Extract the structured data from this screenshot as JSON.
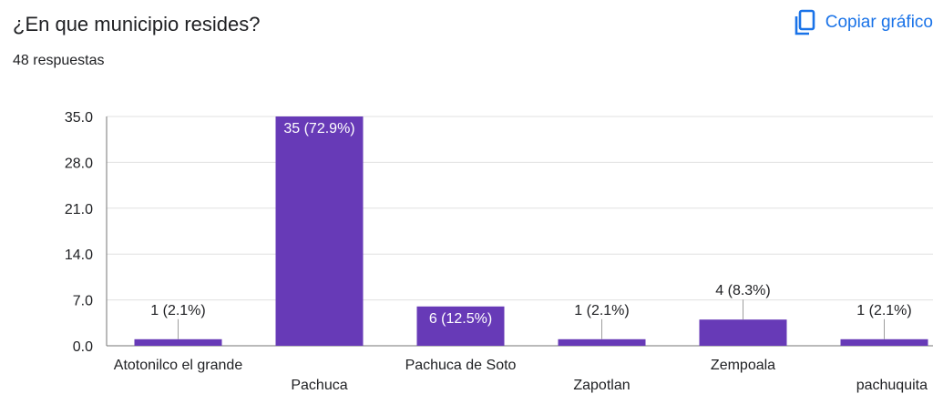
{
  "question": {
    "title": "¿En que municipio resides?",
    "response_count": "48 respuestas"
  },
  "toolbar": {
    "copy_label": "Copiar gráfico",
    "copy_icon": "copy-icon"
  },
  "colors": {
    "bar": "#673ab7",
    "accent": "#1a73e8",
    "grid": "#e0e0e0"
  },
  "chart_data": {
    "type": "bar",
    "categories": [
      "Atotonilco el grande",
      "Pachuca",
      "Pachuca de Soto",
      "Zapotlan",
      "Zempoala",
      "pachuquita"
    ],
    "values": [
      1,
      35,
      6,
      1,
      4,
      1
    ],
    "data_labels": [
      "1 (2.1%)",
      "35 (72.9%)",
      "6 (12.5%)",
      "1 (2.1%)",
      "4 (8.3%)",
      "1 (2.1%)"
    ],
    "yticks": [
      "0.0",
      "7.0",
      "14.0",
      "21.0",
      "28.0",
      "35.0"
    ],
    "ylim": [
      0,
      35
    ],
    "grid": true,
    "title": "",
    "xlabel": "",
    "ylabel": ""
  }
}
